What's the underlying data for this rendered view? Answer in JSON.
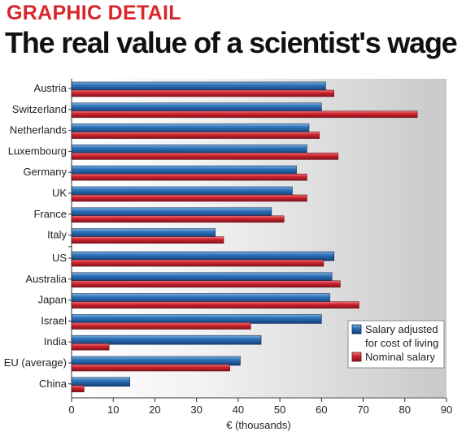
{
  "header": {
    "kicker": "GRAPHIC DETAIL",
    "title": "The real value of a scientist's wage"
  },
  "colors": {
    "adjusted": "#1f5fa8",
    "nominal": "#d0242f",
    "kicker": "#d8262b"
  },
  "chart_data": {
    "type": "bar",
    "orientation": "horizontal",
    "title": "The real value of a scientist's wage",
    "xlabel": "€ (thousands)",
    "ylabel": "",
    "xlim": [
      0,
      90
    ],
    "xticks": [
      0,
      10,
      20,
      30,
      40,
      50,
      60,
      70,
      80,
      90
    ],
    "categories": [
      "Austria",
      "Switzerland",
      "Netherlands",
      "Luxembourg",
      "Germany",
      "UK",
      "France",
      "Italy",
      "US",
      "Australia",
      "Japan",
      "Israel",
      "India",
      "EU (average)",
      "China"
    ],
    "groups": [
      {
        "categories": [
          "Austria",
          "Switzerland",
          "Netherlands",
          "Luxembourg",
          "Germany",
          "UK",
          "France",
          "Italy"
        ]
      },
      {
        "categories": [
          "US",
          "Australia",
          "Japan",
          "Israel",
          "India",
          "EU (average)",
          "China"
        ]
      }
    ],
    "series": [
      {
        "name": "Salary adjusted for cost of living",
        "values": [
          61,
          60,
          57,
          56.5,
          54,
          53,
          48,
          34.5,
          63,
          62.5,
          62,
          60,
          45.5,
          40.5,
          14
        ]
      },
      {
        "name": "Nominal salary",
        "values": [
          63,
          83,
          59.5,
          64,
          56.5,
          56.5,
          51,
          36.5,
          60.5,
          64.5,
          69,
          43,
          9,
          38,
          3
        ]
      }
    ],
    "legend": {
      "position": "right",
      "entries": [
        {
          "label_line1": "Salary adjusted",
          "label_line2": "for cost of living"
        },
        {
          "label_line1": "Nominal salary",
          "label_line2": ""
        }
      ]
    },
    "grid": false
  }
}
